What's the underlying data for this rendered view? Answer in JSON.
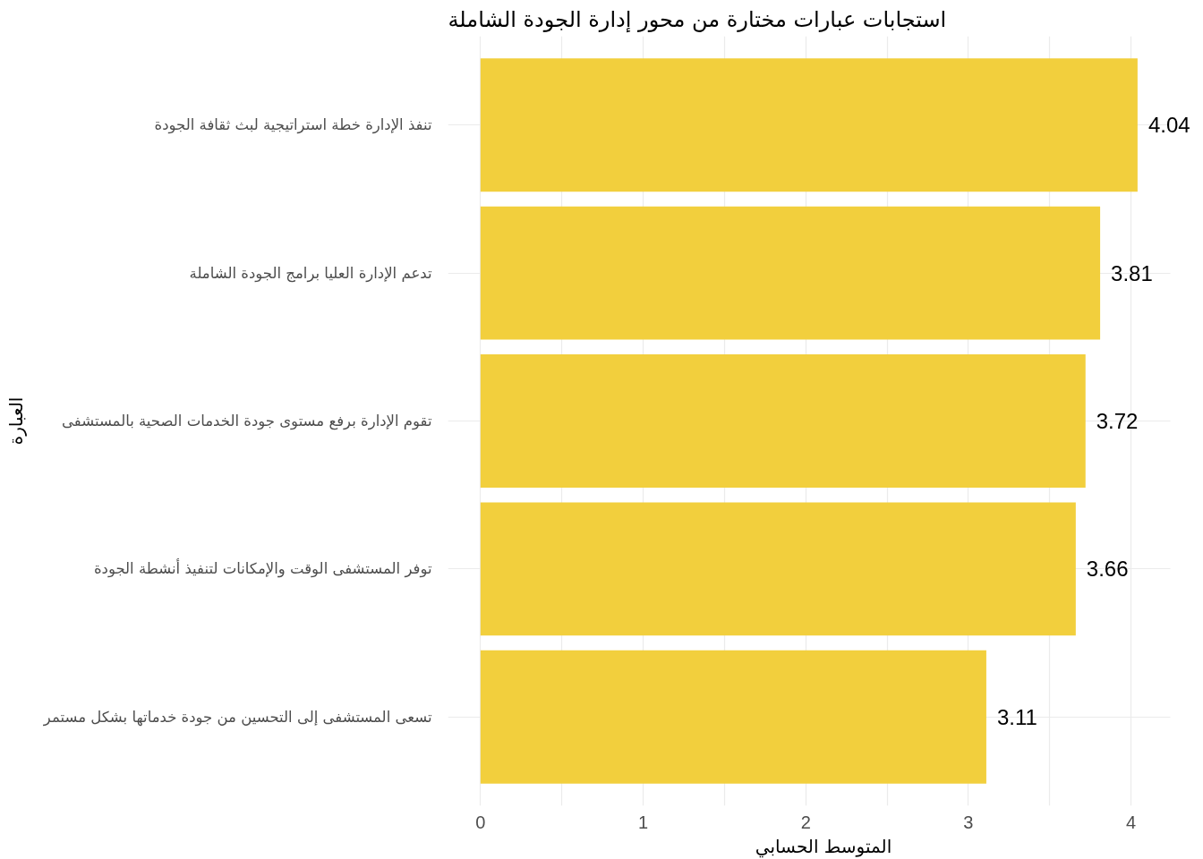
{
  "chart_data": {
    "type": "bar",
    "orientation": "horizontal",
    "title": "استجابات عبارات مختارة من محور إدارة الجودة الشاملة",
    "xlabel": "المتوسط الحسابي",
    "ylabel": "العبارة",
    "categories": [
      "تنفذ الإدارة خطة استراتيجية لبث ثقافة الجودة",
      "تدعم الإدارة العليا برامج الجودة الشاملة",
      "تقوم الإدارة برفع مستوى جودة الخدمات الصحية بالمستشفى",
      "توفر المستشفى الوقت والإمكانات لتنفيذ أنشطة الجودة",
      "تسعى المستشفى إلى التحسين من جودة خدماتها بشكل مستمر"
    ],
    "values": [
      4.04,
      3.81,
      3.72,
      3.66,
      3.11
    ],
    "color": "#f2cf3d",
    "xlim": [
      -0.2,
      4.24
    ],
    "xticks": [
      0,
      {
        "value": 0.5,
        "label": null
      },
      1,
      {
        "value": 1.5,
        "label": null
      },
      2,
      {
        "value": 2.5,
        "label": null
      },
      3,
      {
        "value": 3.5,
        "label": null
      },
      4
    ],
    "grid": true,
    "data_labels": true
  }
}
